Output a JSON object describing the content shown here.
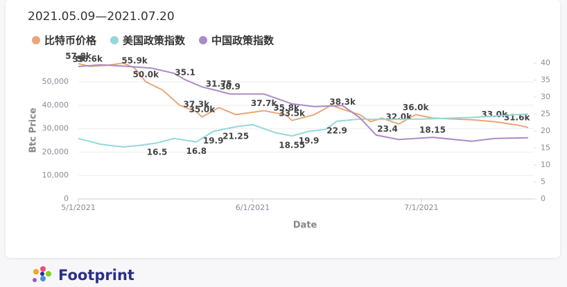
{
  "chart_data": {
    "type": "line",
    "title": "2021.05.09—2021.07.20",
    "x_label": "Date",
    "y_label": "Btc Price",
    "xlim": [
      "2021-05-01",
      "2021-07-21"
    ],
    "xticks": [
      {
        "value": "2021-05-01",
        "label": "5/1/2021"
      },
      {
        "value": "2021-06-01",
        "label": "6/1/2021"
      },
      {
        "value": "2021-07-01",
        "label": "7/1/2021"
      }
    ],
    "ylim": [
      0,
      58000
    ],
    "yticks": [
      0,
      {
        "value": 10000,
        "label": "10,000"
      },
      {
        "value": 20000,
        "label": "20,000"
      },
      {
        "value": 30000,
        "label": "30,000"
      },
      {
        "value": 40000,
        "label": "40,000"
      },
      {
        "value": 50000,
        "label": "50,000"
      }
    ],
    "y2lim": [
      0,
      40
    ],
    "y2ticks": [
      0,
      5,
      10,
      15,
      20,
      25,
      30,
      35,
      40
    ],
    "legend": "top-left",
    "series": [
      {
        "name": "比特币价格",
        "color": "#e9a677",
        "x": [
          "2021-05-01",
          "2021-05-03",
          "2021-05-06",
          "2021-05-09",
          "2021-05-11",
          "2021-05-13",
          "2021-05-16",
          "2021-05-19",
          "2021-05-22",
          "2021-05-23",
          "2021-05-26",
          "2021-05-29",
          "2021-06-01",
          "2021-06-03",
          "2021-06-07",
          "2021-06-08",
          "2021-06-12",
          "2021-06-15",
          "2021-06-17",
          "2021-06-20",
          "2021-06-22",
          "2021-06-24",
          "2021-06-27",
          "2021-06-30",
          "2021-07-03",
          "2021-07-06",
          "2021-07-10",
          "2021-07-14",
          "2021-07-18",
          "2021-07-20"
        ],
        "values": [
          57800,
          56600,
          57000,
          58000,
          55900,
          50000,
          46500,
          40000,
          37300,
          35000,
          39000,
          36000,
          37000,
          37700,
          35800,
          33500,
          36000,
          40000,
          38300,
          36000,
          33000,
          34500,
          32000,
          36000,
          34500,
          34200,
          33800,
          33000,
          31600,
          30500
        ],
        "value_labels": [
          "57.8k",
          "56.6k",
          null,
          null,
          "55.9k",
          "50.0k",
          null,
          null,
          "37.3k",
          "35.0k",
          null,
          null,
          null,
          "37.7k",
          "35.8k",
          "33.5k",
          null,
          null,
          "38.3k",
          null,
          null,
          null,
          "32.0k",
          "36.0k",
          null,
          null,
          null,
          "33.0k",
          "31.6k",
          null
        ]
      },
      {
        "name": "美国政策指数",
        "color": "#92d9d9",
        "axis": "y2",
        "x": [
          "2021-05-01",
          "2021-05-05",
          "2021-05-09",
          "2021-05-12",
          "2021-05-15",
          "2021-05-18",
          "2021-05-22",
          "2021-05-25",
          "2021-05-29",
          "2021-06-01",
          "2021-06-05",
          "2021-06-08",
          "2021-06-11",
          "2021-06-14",
          "2021-06-16",
          "2021-06-20",
          "2021-06-25",
          "2021-07-01",
          "2021-07-10",
          "2021-07-20"
        ],
        "values": [
          17.8,
          16.1,
          15.3,
          15.8,
          16.5,
          17.8,
          16.8,
          19.9,
          21.25,
          21.9,
          19.5,
          18.55,
          19.9,
          20.5,
          22.9,
          23.5,
          23.4,
          23.5,
          24,
          25
        ],
        "value_labels": [
          null,
          null,
          null,
          null,
          "16.5",
          null,
          "16.8",
          "19.9",
          "21.25",
          null,
          null,
          "18.55",
          "19.9",
          null,
          "22.9",
          null,
          "23.4",
          null,
          null,
          null
        ]
      },
      {
        "name": "中国政策指数",
        "color": "#a98bc5",
        "axis": "y2",
        "x": [
          "2021-05-01",
          "2021-05-05",
          "2021-05-10",
          "2021-05-14",
          "2021-05-18",
          "2021-05-20",
          "2021-05-23",
          "2021-05-26",
          "2021-05-28",
          "2021-06-03",
          "2021-06-08",
          "2021-06-12",
          "2021-06-17",
          "2021-06-20",
          "2021-06-23",
          "2021-06-27",
          "2021-07-03",
          "2021-07-10",
          "2021-07-14",
          "2021-07-20"
        ],
        "values": [
          39,
          39.5,
          39,
          38.5,
          37,
          35.1,
          33,
          31.75,
          30.9,
          30.9,
          28,
          27.2,
          27.5,
          24,
          18.8,
          17.5,
          18.15,
          17,
          17.8,
          18
        ],
        "value_labels": [
          "39",
          null,
          null,
          null,
          null,
          "35.1",
          null,
          "31.75",
          "30.9",
          null,
          null,
          null,
          null,
          null,
          null,
          null,
          "18.15",
          null,
          null,
          null
        ]
      }
    ]
  },
  "footer": {
    "brand": "Footprint"
  }
}
